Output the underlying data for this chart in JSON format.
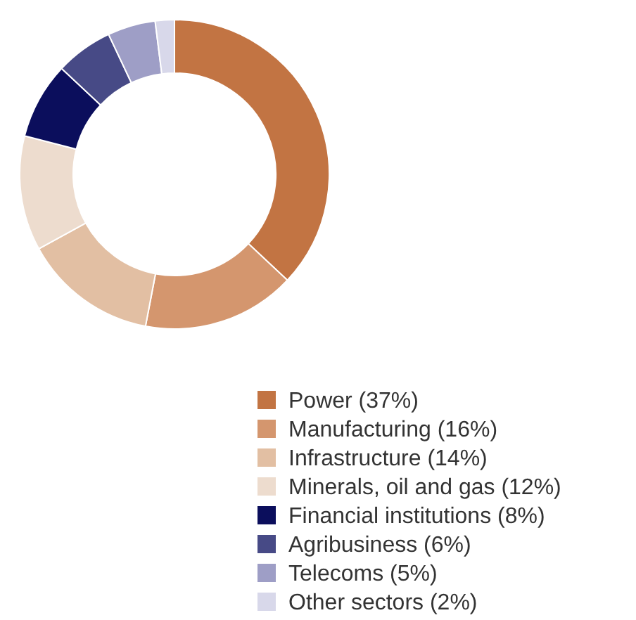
{
  "chart_data": {
    "type": "donut",
    "categories": [
      "Power (37%)",
      "Manufacturing (16%)",
      "Infrastructure (14%)",
      "Minerals, oil and gas (12%)",
      "Financial institutions (8%)",
      "Agribusiness (6%)",
      "Telecoms (5%)",
      "Other sectors (2%)"
    ],
    "values": [
      37,
      16,
      14,
      12,
      8,
      6,
      5,
      2
    ],
    "colors": [
      "#c27443",
      "#d4966e",
      "#e2bfa3",
      "#eddcce",
      "#0b0e5c",
      "#474a86",
      "#9e9ec6",
      "#d8d8ea"
    ],
    "legend": "bottom"
  }
}
